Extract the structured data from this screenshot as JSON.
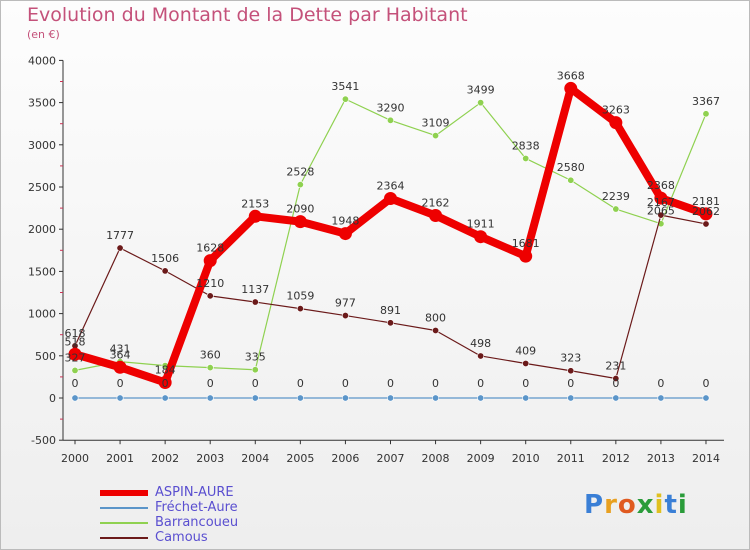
{
  "title": "Evolution du Montant de la Dette par Habitant",
  "subtitle": "(en €)",
  "logo": "Proxiti",
  "colors": {
    "title": "#c4517a",
    "legend_text": "#5a4fd0",
    "axis": "#333333",
    "grid_tick": "#cc3355"
  },
  "chart_data": {
    "type": "line",
    "title": "Evolution du Montant de la Dette par Habitant",
    "subtitle": "(en €)",
    "x": [
      "2000",
      "2001",
      "2002",
      "2003",
      "2004",
      "2005",
      "2006",
      "2007",
      "2008",
      "2009",
      "2010",
      "2011",
      "2012",
      "2013",
      "2014"
    ],
    "yticks": [
      "-500",
      "0",
      "500",
      "1000",
      "1500",
      "2000",
      "2500",
      "3000",
      "3500",
      "4000"
    ],
    "ylim": [
      -500,
      4000
    ],
    "grid": false,
    "legend_position": "bottom-left",
    "series": [
      {
        "name": "ASPIN-AURE",
        "color": "#ee0000",
        "values": [
          518,
          364,
          184,
          1628,
          2153,
          2090,
          1948,
          2364,
          2162,
          1911,
          1681,
          3668,
          3263,
          2368,
          2181
        ],
        "labels": [
          "518",
          "364",
          "184",
          "1628",
          "2153",
          "2090",
          "1948",
          "2364",
          "2162",
          "1911",
          "1681",
          "3668",
          "3263",
          "2368",
          "2181"
        ]
      },
      {
        "name": "Fréchet-Aure",
        "color": "#5b95c9",
        "values": [
          0,
          0,
          0,
          0,
          0,
          0,
          0,
          0,
          0,
          0,
          0,
          0,
          0,
          0,
          0
        ],
        "labels": [
          "0",
          "0",
          "0",
          "0",
          "0",
          "0",
          "0",
          "0",
          "0",
          "0",
          "0",
          "0",
          "0",
          "0",
          "0"
        ]
      },
      {
        "name": "Barrancoueu",
        "color": "#8fd150",
        "values": [
          327,
          431,
          384,
          360,
          335,
          2528,
          3541,
          3290,
          3109,
          3499,
          2838,
          2580,
          2239,
          2065,
          3367
        ],
        "labels": [
          "327",
          "431",
          "",
          "360",
          "335",
          "2528",
          "3541",
          "3290",
          "3109",
          "3499",
          "2838",
          "2580",
          "2239",
          "2065",
          "3367"
        ]
      },
      {
        "name": "Camous",
        "color": "#6b1a1a",
        "values": [
          618,
          1777,
          1506,
          1210,
          1137,
          1059,
          977,
          891,
          800,
          498,
          409,
          323,
          231,
          2167,
          2062
        ],
        "labels": [
          "618",
          "1777",
          "1506",
          "1210",
          "1137",
          "1059",
          "977",
          "891",
          "800",
          "498",
          "409",
          "323",
          "231",
          "2167",
          "2062"
        ]
      }
    ]
  }
}
